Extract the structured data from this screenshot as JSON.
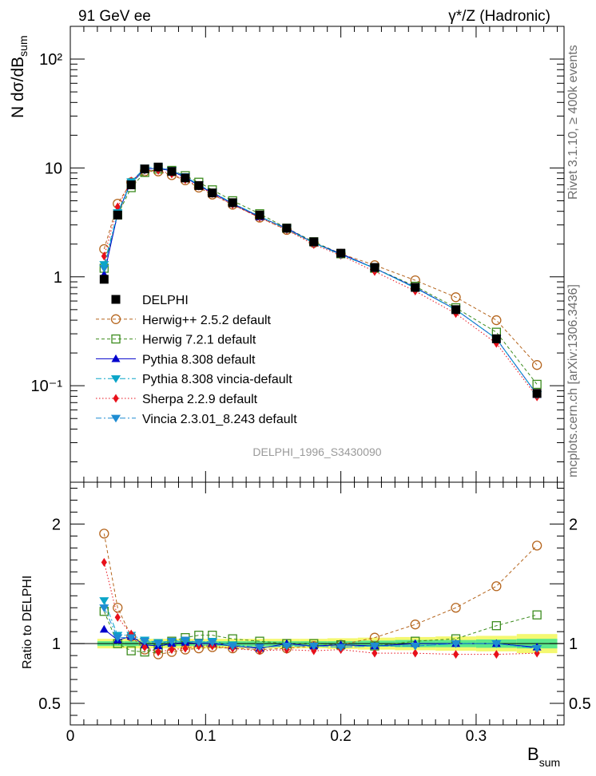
{
  "chart_data": {
    "type": "scatter",
    "header": {
      "left": "91 GeV ee",
      "right": "γ*/Z (Hadronic)"
    },
    "side_labels": {
      "top": "Rivet 3.1.10, ≥ 400k events",
      "bottom": "mcplots.cern.ch [arXiv:1306.3436]"
    },
    "analysis_label": "DELPHI_1996_S3430090",
    "main": {
      "ylabel": "N dσ/dB_sum",
      "yscale": "log",
      "ylim": [
        0.013,
        200
      ],
      "y_ticks": [
        {
          "value": 100,
          "label": "10²"
        },
        {
          "value": 10,
          "label": "10"
        },
        {
          "value": 1,
          "label": "1"
        },
        {
          "value": 0.1,
          "label": "10⁻¹"
        }
      ]
    },
    "ratio": {
      "ylabel": "Ratio to DELPHI",
      "ylim": [
        0.32,
        2.35
      ],
      "y_ticks": [
        {
          "value": 0.5,
          "label": "0.5"
        },
        {
          "value": 1,
          "label": "1"
        },
        {
          "value": 2,
          "label": "2"
        }
      ]
    },
    "x": {
      "label": "B",
      "label_sub": "sum",
      "xlim": [
        0,
        0.365
      ],
      "ticks": [
        {
          "value": 0,
          "label": "0"
        },
        {
          "value": 0.1,
          "label": "0.1"
        },
        {
          "value": 0.2,
          "label": "0.2"
        },
        {
          "value": 0.3,
          "label": "0.3"
        }
      ]
    },
    "x_points": [
      0.025,
      0.035,
      0.045,
      0.055,
      0.065,
      0.075,
      0.085,
      0.095,
      0.105,
      0.12,
      0.14,
      0.16,
      0.18,
      0.2,
      0.225,
      0.255,
      0.285,
      0.315,
      0.345
    ],
    "series": [
      {
        "name": "DELPHI",
        "color": "#000000",
        "marker": "square-filled",
        "line": "none",
        "values": [
          0.95,
          3.7,
          7.0,
          9.8,
          10.2,
          9.3,
          8.1,
          6.9,
          5.9,
          4.8,
          3.7,
          2.8,
          2.1,
          1.65,
          1.22,
          0.8,
          0.5,
          0.27,
          0.085
        ]
      },
      {
        "name": "Herwig++ 2.5.2 default",
        "color": "#b5651d",
        "marker": "circle-open",
        "line": "dashed",
        "values": [
          1.8,
          4.7,
          7.4,
          9.3,
          9.3,
          8.6,
          7.7,
          6.6,
          5.7,
          4.6,
          3.5,
          2.7,
          2.05,
          1.63,
          1.28,
          0.93,
          0.65,
          0.4,
          0.155
        ]
      },
      {
        "name": "Herwig 7.2.1 default",
        "color": "#3c8c1e",
        "marker": "square-open",
        "line": "dashed",
        "values": [
          1.2,
          3.7,
          6.6,
          9.1,
          9.8,
          9.5,
          8.5,
          7.4,
          6.3,
          5.0,
          3.8,
          2.8,
          2.1,
          1.63,
          1.2,
          0.82,
          0.52,
          0.31,
          0.103
        ]
      },
      {
        "name": "Pythia 8.308 default",
        "color": "#0000cc",
        "marker": "triangle-up",
        "line": "solid",
        "values": [
          1.05,
          3.8,
          7.5,
          9.7,
          10.0,
          9.35,
          8.2,
          6.9,
          5.9,
          4.7,
          3.55,
          2.8,
          2.05,
          1.63,
          1.2,
          0.8,
          0.5,
          0.27,
          0.083
        ]
      },
      {
        "name": "Pythia 8.308 vincia-default",
        "color": "#0aa5c8",
        "marker": "triangle-down",
        "line": "dashdot",
        "values": [
          1.3,
          3.9,
          7.5,
          10.0,
          10.3,
          9.5,
          8.3,
          7.0,
          6.0,
          4.75,
          3.6,
          2.75,
          2.05,
          1.6,
          1.2,
          0.79,
          0.5,
          0.27,
          0.083
        ]
      },
      {
        "name": "Sherpa 2.2.9 default",
        "color": "#e8101a",
        "marker": "diamond",
        "line": "dotted",
        "values": [
          1.55,
          4.4,
          7.6,
          9.5,
          9.5,
          8.8,
          7.8,
          6.8,
          5.8,
          4.6,
          3.5,
          2.7,
          1.98,
          1.58,
          1.12,
          0.74,
          0.46,
          0.245,
          0.079
        ]
      },
      {
        "name": "Vincia 2.3.01_8.243 default",
        "color": "#1e8cd2",
        "marker": "triangle-down",
        "line": "dashdot",
        "values": [
          1.2,
          3.8,
          7.2,
          9.6,
          10.1,
          9.5,
          8.35,
          7.0,
          6.0,
          4.75,
          3.6,
          2.75,
          2.05,
          1.6,
          1.2,
          0.79,
          0.5,
          0.27,
          0.083
        ]
      }
    ],
    "ratios": [
      {
        "name": "Herwig++ 2.5.2 default",
        "values": [
          1.92,
          1.3,
          1.06,
          0.95,
          0.91,
          0.93,
          0.95,
          0.96,
          0.97,
          0.96,
          0.95,
          0.96,
          0.98,
          0.99,
          1.05,
          1.16,
          1.3,
          1.48,
          1.82
        ]
      },
      {
        "name": "Herwig 7.2.1 default",
        "values": [
          1.27,
          1.0,
          0.94,
          0.93,
          0.96,
          1.02,
          1.05,
          1.07,
          1.07,
          1.04,
          1.02,
          1.0,
          1.0,
          0.99,
          0.98,
          1.02,
          1.04,
          1.15,
          1.24
        ]
      },
      {
        "name": "Pythia 8.308 default",
        "values": [
          1.12,
          1.03,
          1.06,
          0.99,
          0.98,
          1.0,
          1.01,
          1.0,
          1.0,
          0.98,
          0.96,
          1.0,
          0.98,
          0.99,
          0.98,
          1.0,
          1.0,
          1.0,
          0.97
        ]
      },
      {
        "name": "Pythia 8.308 vincia-default",
        "values": [
          1.36,
          1.07,
          1.07,
          1.03,
          1.01,
          1.02,
          1.02,
          1.01,
          1.02,
          0.99,
          0.97,
          0.98,
          0.98,
          0.97,
          0.98,
          0.98,
          1.0,
          1.0,
          0.96
        ]
      },
      {
        "name": "Sherpa 2.2.9 default",
        "values": [
          1.68,
          1.22,
          1.08,
          0.97,
          0.93,
          0.95,
          0.96,
          0.98,
          0.98,
          0.96,
          0.94,
          0.95,
          0.94,
          0.95,
          0.92,
          0.92,
          0.91,
          0.91,
          0.92
        ]
      },
      {
        "name": "Vincia 2.3.01_8.243 default",
        "values": [
          1.3,
          1.05,
          1.05,
          1.02,
          1.0,
          1.02,
          1.03,
          1.01,
          1.01,
          0.98,
          0.97,
          0.98,
          0.98,
          0.97,
          0.98,
          0.98,
          1.0,
          1.0,
          0.96
        ]
      }
    ],
    "uncertainty_band": {
      "inner_color": "#5ce88c",
      "outer_color": "#f4f870",
      "inner": [
        0.02,
        0.02,
        0.02,
        0.02,
        0.02,
        0.02,
        0.02,
        0.02,
        0.02,
        0.02,
        0.02,
        0.02,
        0.02,
        0.02,
        0.025,
        0.03,
        0.03,
        0.035,
        0.04
      ],
      "outer": [
        0.04,
        0.04,
        0.04,
        0.04,
        0.04,
        0.04,
        0.04,
        0.04,
        0.04,
        0.04,
        0.04,
        0.04,
        0.04,
        0.045,
        0.05,
        0.055,
        0.06,
        0.065,
        0.08
      ]
    }
  }
}
